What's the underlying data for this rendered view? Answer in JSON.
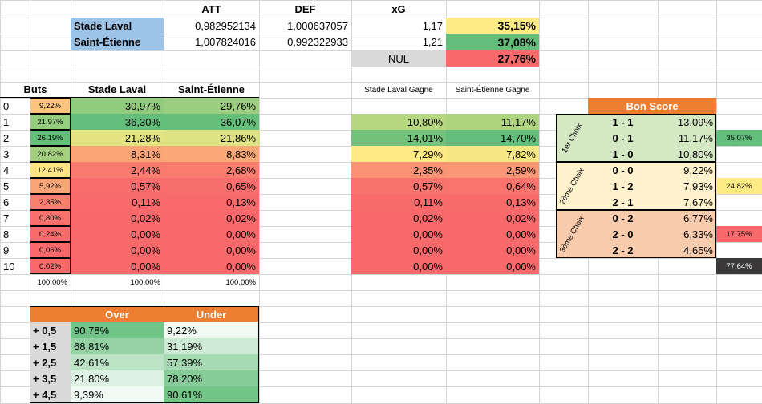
{
  "colors": {
    "teamBlue": "#9dc3e6",
    "orange": "#ed7d31",
    "yellow": "#ffeb84",
    "green": "#63be7b",
    "red": "#f8696b",
    "lightGreen": "#d5e8c4",
    "lightYellow": "#fff2cc",
    "lightSalmon": "#f8cbad",
    "darkCell": "#3a3838",
    "gridline": "#d4d4d4"
  },
  "header": {
    "att": "ATT",
    "def": "DEF",
    "xg": "xG"
  },
  "teams": [
    {
      "name": "Stade Laval",
      "att": "0,982952134",
      "def": "1,000637057",
      "xg": "1,17",
      "win": "35,15%"
    },
    {
      "name": "Saint-Étienne",
      "att": "1,007824016",
      "def": "0,992322933",
      "xg": "1,21",
      "win": "37,08%"
    }
  ],
  "draw": {
    "label": "NUL",
    "value": "27,76%"
  },
  "goals_table": {
    "headers": [
      "Buts",
      "Stade Laval",
      "Saint-Étienne"
    ],
    "rows": [
      {
        "n": "0",
        "p": "9,22%",
        "a": "30,97%",
        "b": "29,76%"
      },
      {
        "n": "1",
        "p": "21,97%",
        "a": "36,30%",
        "b": "36,07%"
      },
      {
        "n": "2",
        "p": "26,19%",
        "a": "21,28%",
        "b": "21,86%"
      },
      {
        "n": "3",
        "p": "20,82%",
        "a": "8,31%",
        "b": "8,83%"
      },
      {
        "n": "4",
        "p": "12,41%",
        "a": "2,44%",
        "b": "2,68%"
      },
      {
        "n": "5",
        "p": "5,92%",
        "a": "0,57%",
        "b": "0,65%"
      },
      {
        "n": "6",
        "p": "2,35%",
        "a": "0,11%",
        "b": "0,13%"
      },
      {
        "n": "7",
        "p": "0,80%",
        "a": "0,02%",
        "b": "0,02%"
      },
      {
        "n": "8",
        "p": "0,24%",
        "a": "0,00%",
        "b": "0,00%"
      },
      {
        "n": "9",
        "p": "0,06%",
        "a": "0,00%",
        "b": "0,00%"
      },
      {
        "n": "10",
        "p": "0,02%",
        "a": "0,00%",
        "b": "0,00%"
      }
    ],
    "totals": [
      "100,00%",
      "100,00%",
      "100,00%"
    ]
  },
  "win_table": {
    "headers": [
      "Stade Laval Gagne",
      "Saint-Étienne Gagne"
    ],
    "rows": [
      {
        "a": "10,80%",
        "b": "11,17%"
      },
      {
        "a": "14,01%",
        "b": "14,70%"
      },
      {
        "a": "7,29%",
        "b": "7,82%"
      },
      {
        "a": "2,35%",
        "b": "2,59%"
      },
      {
        "a": "0,57%",
        "b": "0,64%"
      },
      {
        "a": "0,11%",
        "b": "0,13%"
      },
      {
        "a": "0,02%",
        "b": "0,02%"
      },
      {
        "a": "0,00%",
        "b": "0,00%"
      },
      {
        "a": "0,00%",
        "b": "0,00%"
      },
      {
        "a": "0,00%",
        "b": "0,00%"
      }
    ]
  },
  "bon_score": {
    "title": "Bon Score",
    "groups": [
      {
        "label": "1er Choix",
        "sum": "35,07%",
        "rows": [
          {
            "s": "1 - 1",
            "p": "13,09%"
          },
          {
            "s": "0 - 1",
            "p": "11,17%"
          },
          {
            "s": "1 - 0",
            "p": "10,80%"
          }
        ]
      },
      {
        "label": "2ème Choix",
        "sum": "24,82%",
        "rows": [
          {
            "s": "0 - 0",
            "p": "9,22%"
          },
          {
            "s": "1 - 2",
            "p": "7,93%"
          },
          {
            "s": "2 - 1",
            "p": "7,67%"
          }
        ]
      },
      {
        "label": "3ème Choix",
        "sum": "17,75%",
        "rows": [
          {
            "s": "0 - 2",
            "p": "6,77%"
          },
          {
            "s": "2 - 0",
            "p": "6,33%"
          },
          {
            "s": "2 - 2",
            "p": "4,65%"
          }
        ]
      }
    ],
    "total": "77,64%"
  },
  "over_under": {
    "headers": [
      "Over",
      "Under"
    ],
    "rows": [
      {
        "t": "+ 0,5",
        "o": "90,78%",
        "u": "9,22%"
      },
      {
        "t": "+ 1,5",
        "o": "68,81%",
        "u": "31,19%"
      },
      {
        "t": "+ 2,5",
        "o": "42,61%",
        "u": "57,39%"
      },
      {
        "t": "+ 3,5",
        "o": "21,80%",
        "u": "78,20%"
      },
      {
        "t": "+ 4,5",
        "o": "9,39%",
        "u": "90,61%"
      }
    ]
  }
}
